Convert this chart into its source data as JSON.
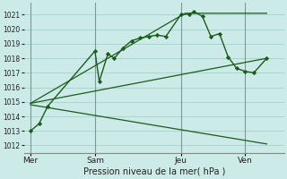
{
  "xlabel": "Pression niveau de la mer( hPa )",
  "bg_color": "#cceae7",
  "grid_color": "#aad4d0",
  "line_color": "#1a5c1a",
  "ylim": [
    1011.5,
    1021.8
  ],
  "yticks": [
    1012,
    1013,
    1014,
    1015,
    1016,
    1017,
    1018,
    1019,
    1020,
    1021
  ],
  "xtick_labels": [
    "Mer",
    "Sam",
    "Jeu",
    "Ven"
  ],
  "xtick_positions": [
    0,
    3,
    7,
    10
  ],
  "xlim": [
    -0.3,
    11.8
  ],
  "series1_x": [
    0,
    0.4,
    0.8,
    3.0,
    3.2,
    3.6,
    3.9,
    4.3,
    4.7,
    5.1,
    5.5,
    5.9,
    6.3,
    7.0,
    7.4,
    7.6,
    8.0,
    8.4,
    8.8,
    9.2,
    9.6,
    10.0,
    10.4,
    11.0
  ],
  "series1_y": [
    1013.0,
    1013.5,
    1014.7,
    1018.5,
    1016.4,
    1018.3,
    1018.0,
    1018.7,
    1019.2,
    1019.4,
    1019.5,
    1019.6,
    1019.5,
    1021.0,
    1021.05,
    1021.2,
    1020.9,
    1019.5,
    1019.7,
    1018.1,
    1017.3,
    1017.1,
    1017.0,
    1018.0
  ],
  "series2_x": [
    0,
    7.2,
    11.0
  ],
  "series2_y": [
    1014.9,
    1021.1,
    1021.1
  ],
  "series3_x": [
    0,
    11.0
  ],
  "series3_y": [
    1014.9,
    1018.0
  ],
  "series4_x": [
    0,
    11.0
  ],
  "series4_y": [
    1014.8,
    1012.1
  ],
  "vlines_x": [
    0,
    3,
    7,
    10
  ]
}
